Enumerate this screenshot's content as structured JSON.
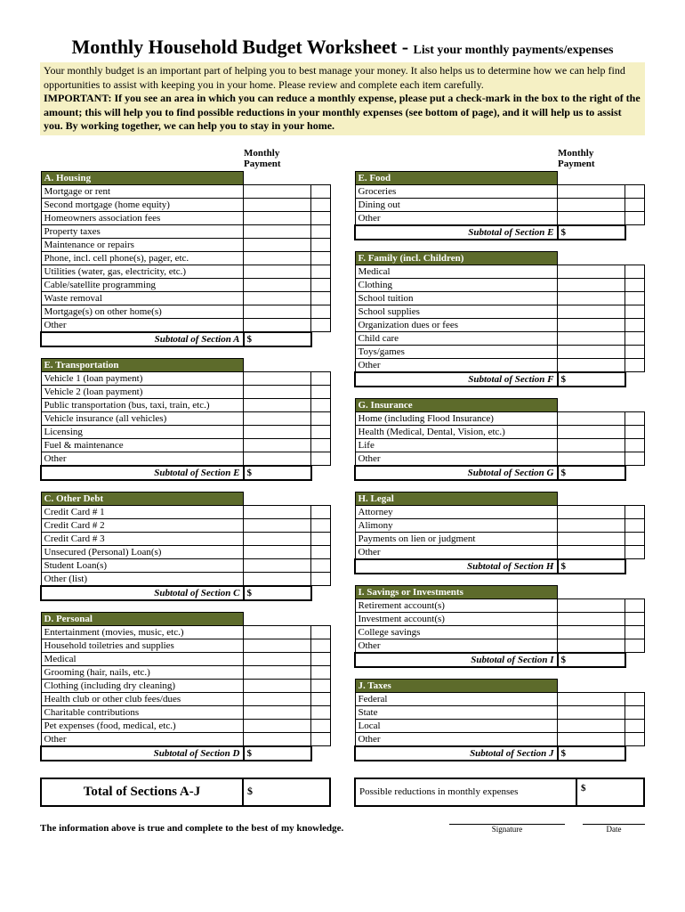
{
  "title_main": "Monthly Household Budget Worksheet - ",
  "title_sub": "List your monthly payments/expenses",
  "intro_text": "Your monthly budget is an important part of helping you to best manage your money. It also helps us to determine how we can help find opportunities to assist with keeping you in your home. Please review and complete each item carefully.",
  "important_label": "IMPORTANT",
  "important_text": ": If you see an area in which you can reduce a monthly expense, please put a check-mark in the box to the right of the amount; this will help you to find possible reductions in your monthly expenses (see bottom of page), and it will help us to assist you. By working together, we can help you to stay in your home.",
  "col_header_monthly": "Monthly",
  "col_header_payment": "Payment",
  "colors": {
    "section_header_bg": "#5d6b2b",
    "section_header_fg": "#ffffff",
    "intro_bg": "#f5f0c4",
    "border": "#000000"
  },
  "sections": {
    "A": {
      "title": "A. Housing",
      "subtotal": "Subtotal of Section A",
      "items": [
        "Mortgage or rent",
        "Second mortgage (home equity)",
        "Homeowners association fees",
        "Property taxes",
        "Maintenance or repairs",
        "Phone, incl. cell phone(s), pager, etc.",
        "Utilities (water, gas, electricity, etc.)",
        "Cable/satellite programming",
        "Waste removal",
        "Mortgage(s) on other home(s)",
        "Other"
      ]
    },
    "B": {
      "title": "E. Transportation",
      "subtotal": "Subtotal of Section E",
      "items": [
        "Vehicle 1 (loan payment)",
        "Vehicle 2 (loan payment)",
        "Public transportation (bus, taxi, train, etc.)",
        "Vehicle insurance (all vehicles)",
        "Licensing",
        "Fuel & maintenance",
        "Other"
      ]
    },
    "C": {
      "title": "C. Other Debt",
      "subtotal": "Subtotal of Section C",
      "items": [
        "Credit Card # 1",
        "Credit Card # 2",
        "Credit Card # 3",
        "Unsecured (Personal) Loan(s)",
        "Student Loan(s)",
        "Other (list)"
      ]
    },
    "D": {
      "title": "D. Personal",
      "subtotal": "Subtotal of Section D",
      "items": [
        "Entertainment (movies, music, etc.)",
        "Household toiletries and supplies",
        "Medical",
        "Grooming (hair, nails, etc.)",
        "Clothing (including dry cleaning)",
        "Health club or other club fees/dues",
        "Charitable contributions",
        "Pet expenses (food, medical, etc.)",
        "Other"
      ]
    },
    "E": {
      "title": "E. Food",
      "subtotal": "Subtotal of Section E",
      "items": [
        "Groceries",
        "Dining out",
        "Other"
      ]
    },
    "F": {
      "title": "F. Family (incl. Children)",
      "subtotal": "Subtotal of Section F",
      "items": [
        "Medical",
        "Clothing",
        "School tuition",
        "School supplies",
        "Organization dues or fees",
        "Child care",
        "Toys/games",
        "Other"
      ]
    },
    "G": {
      "title": "G. Insurance",
      "subtotal": "Subtotal of Section G",
      "items": [
        "Home (including Flood Insurance)",
        "Health (Medical, Dental, Vision, etc.)",
        "Life",
        "Other"
      ]
    },
    "H": {
      "title": "H. Legal",
      "subtotal": "Subtotal of Section H",
      "items": [
        "Attorney",
        "Alimony",
        "Payments on lien or judgment",
        "Other"
      ]
    },
    "I": {
      "title": "I. Savings or Investments",
      "subtotal": "Subtotal of Section I",
      "items": [
        "Retirement account(s)",
        "Investment account(s)",
        "College savings",
        "Other"
      ]
    },
    "J": {
      "title": "J. Taxes",
      "subtotal": "Subtotal of Section J",
      "items": [
        "Federal",
        "State",
        "Local",
        "Other"
      ]
    }
  },
  "total_label": "Total of Sections A-J",
  "total_symbol": "$",
  "reduction_label": "Possible reductions in monthly expenses",
  "reduction_symbol": "$",
  "subtotal_symbol": "$",
  "attestation": "The information above is true and complete to the best of my knowledge.",
  "sig_label": "Signature",
  "date_label": "Date"
}
